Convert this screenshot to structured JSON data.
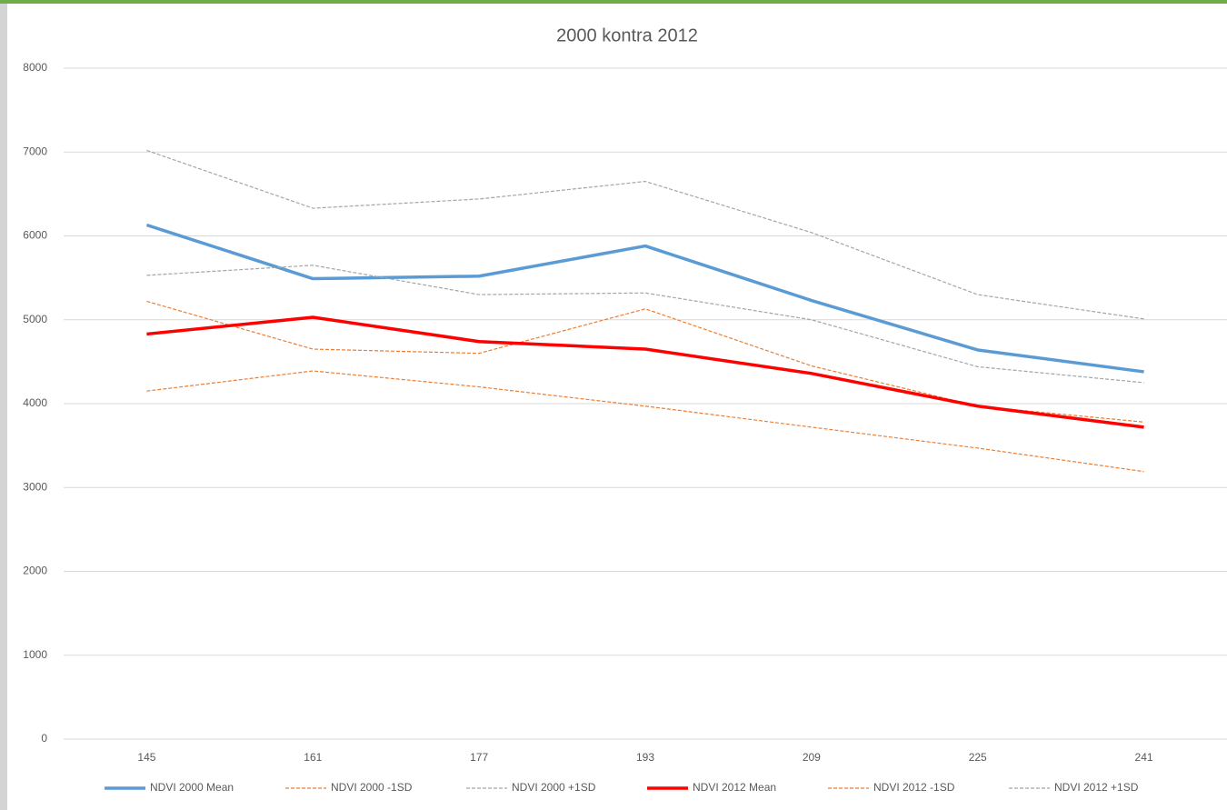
{
  "chart_data": {
    "type": "line",
    "title": "2000 kontra 2012",
    "categories": [
      "145",
      "161",
      "177",
      "193",
      "209",
      "225",
      "241"
    ],
    "ylim": [
      0,
      8000
    ],
    "yticks": [
      0,
      1000,
      2000,
      3000,
      4000,
      5000,
      6000,
      7000,
      8000
    ],
    "grid": true,
    "legend": "bottom",
    "series": [
      {
        "name": "NDVI 2000 Mean",
        "color": "#5b9bd5",
        "dashed": false,
        "values": [
          6130,
          5490,
          5520,
          5880,
          5230,
          4640,
          4380
        ]
      },
      {
        "name": "NDVI 2000 -1SD",
        "color": "#ed7d31",
        "dashed": true,
        "values": [
          5220,
          4650,
          4600,
          5130,
          4450,
          3970,
          3780
        ]
      },
      {
        "name": "NDVI 2000 +1SD",
        "color": "#a5a5a5",
        "dashed": true,
        "values": [
          7020,
          6330,
          6440,
          6650,
          6040,
          5300,
          5010
        ]
      },
      {
        "name": "NDVI 2012 Mean",
        "color": "#ff0000",
        "dashed": false,
        "values": [
          4830,
          5030,
          4740,
          4650,
          4360,
          3970,
          3720
        ]
      },
      {
        "name": "NDVI 2012 -1SD",
        "color": "#ed7d31",
        "dashed": true,
        "values": [
          4150,
          4390,
          4200,
          3970,
          3720,
          3470,
          3190
        ]
      },
      {
        "name": "NDVI 2012 +1SD",
        "color": "#a5a5a5",
        "dashed": true,
        "values": [
          5530,
          5650,
          5300,
          5320,
          5000,
          4440,
          4250
        ]
      }
    ]
  }
}
